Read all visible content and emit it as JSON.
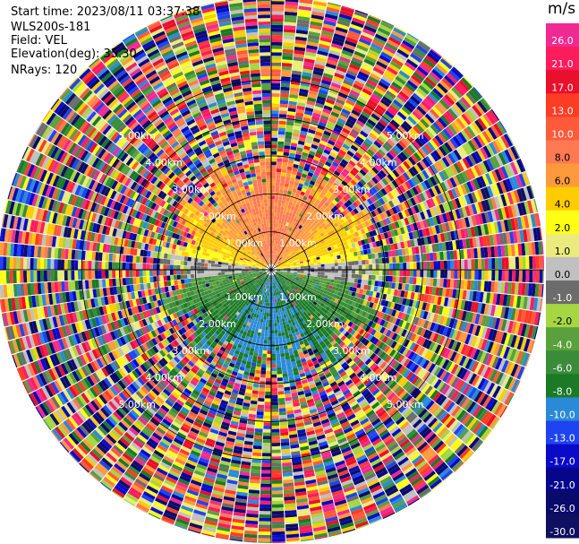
{
  "header": {
    "start_time": "Start time: 2023/08/11 03:37:38",
    "instrument": "WLS200s-181",
    "field": "Field: VEL",
    "elevation": "Elevation(deg): 35.30",
    "nrays": "NRays: 120"
  },
  "colorbar": {
    "unit": "m/s",
    "bands": [
      {
        "label": "26.0",
        "color": "#f02a92"
      },
      {
        "label": "21.0",
        "color": "#ff1c5c"
      },
      {
        "label": "17.0",
        "color": "#e8102a"
      },
      {
        "label": "13.0",
        "color": "#ff3c24"
      },
      {
        "label": "10.0",
        "color": "#ff5a3a"
      },
      {
        "label": "8.0",
        "color": "#ff7a52"
      },
      {
        "label": "6.0",
        "color": "#ff9a3c"
      },
      {
        "label": "4.0",
        "color": "#ffcc00"
      },
      {
        "label": "2.0",
        "color": "#ffff14"
      },
      {
        "label": "1.0",
        "color": "#eaeb7c"
      },
      {
        "label": "0.0",
        "color": "#c0c0c0"
      },
      {
        "label": "-1.0",
        "color": "#6c6c6c"
      },
      {
        "label": "-2.0",
        "color": "#a6d642"
      },
      {
        "label": "-4.0",
        "color": "#5aa03c"
      },
      {
        "label": "-6.0",
        "color": "#3a8c3a"
      },
      {
        "label": "-8.0",
        "color": "#1a7a26"
      },
      {
        "label": "-10.0",
        "color": "#2a8ad8"
      },
      {
        "label": "-13.0",
        "color": "#1e44f0"
      },
      {
        "label": "-17.0",
        "color": "#0a0ac8"
      },
      {
        "label": "-21.0",
        "color": "#06068c"
      },
      {
        "label": "-26.0",
        "color": "#0a0a6a"
      },
      {
        "label": "-30.0",
        "color": "#101060"
      }
    ]
  },
  "chart_data": {
    "type": "heatmap",
    "projection": "polar PPI",
    "field": "VEL",
    "units": "m/s",
    "nrays": 120,
    "max_range_km": 7.2,
    "range_rings": [
      {
        "range_km": 1.0,
        "label": "1.00km"
      },
      {
        "range_km": 2.0,
        "label": "2.00km"
      },
      {
        "range_km": 3.0,
        "label": "3.00km"
      },
      {
        "range_km": 4.0,
        "label": "4.00km"
      },
      {
        "range_km": 5.0,
        "label": "5.00km"
      }
    ],
    "ring_label_azimuths_deg": [
      45,
      135,
      225,
      315
    ],
    "spokes_deg": [
      0,
      30,
      60,
      90,
      120,
      150,
      180,
      210,
      240,
      270,
      300,
      330
    ],
    "velocity_pattern": [
      {
        "sector": "north (approx. 270-30 deg)",
        "range_km": "0.3-3.0",
        "velocity_m_s": "8 to 2 (receding)"
      },
      {
        "sector": "east-west line (approx. 80-100, 260-280 deg)",
        "range_km": "0.3-3.0",
        "velocity_m_s": "0 to -1"
      },
      {
        "sector": "south (approx. 100-260 deg)",
        "range_km": "0.3-3.0",
        "velocity_m_s": "-2 to -10 (approaching)"
      },
      {
        "sector": "all azimuths",
        "range_km": "3.0-7.2",
        "velocity_m_s": "noise, full colour range"
      }
    ],
    "colorbar_ticks": [
      26.0,
      21.0,
      17.0,
      13.0,
      10.0,
      8.0,
      6.0,
      4.0,
      2.0,
      1.0,
      0.0,
      -1.0,
      -2.0,
      -4.0,
      -6.0,
      -8.0,
      -10.0,
      -13.0,
      -17.0,
      -21.0,
      -26.0,
      -30.0
    ]
  }
}
